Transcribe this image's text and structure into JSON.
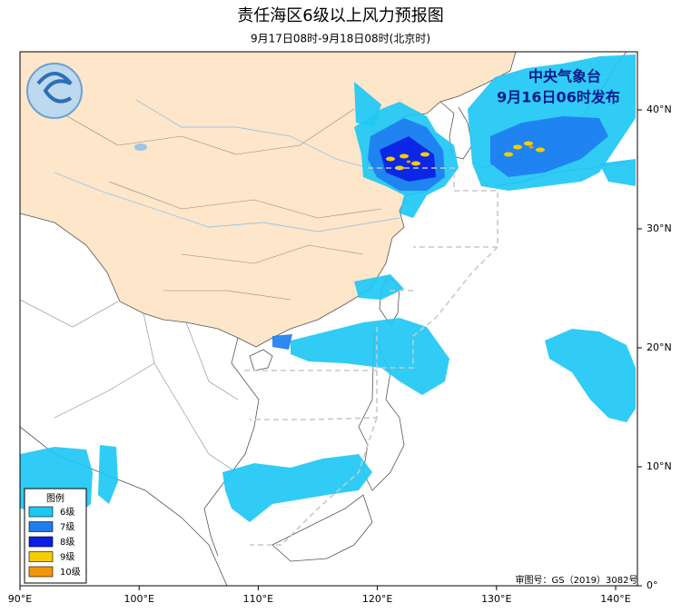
{
  "header": {
    "title": "责任海区6级以上风力预报图",
    "subtitle": "9月17日08时-9月18日08时(北京时)"
  },
  "agency": {
    "name": "中央气象台",
    "issued": "9月16日06时发布"
  },
  "axes": {
    "x_labels": [
      "90°E",
      "100°E",
      "110°E",
      "120°E",
      "130°E",
      "140°E"
    ],
    "y_labels": [
      "0°",
      "10°N",
      "20°N",
      "30°N",
      "40°N"
    ]
  },
  "legend": {
    "title": "图例",
    "items": [
      {
        "label": "6级",
        "color": "#1ec8f5"
      },
      {
        "label": "7级",
        "color": "#1e7ef0"
      },
      {
        "label": "8级",
        "color": "#0a1ee6"
      },
      {
        "label": "9级",
        "color": "#f5cd00"
      },
      {
        "label": "10级",
        "color": "#f5960a"
      }
    ]
  },
  "approval": "审图号：GS（2019）3082号"
}
